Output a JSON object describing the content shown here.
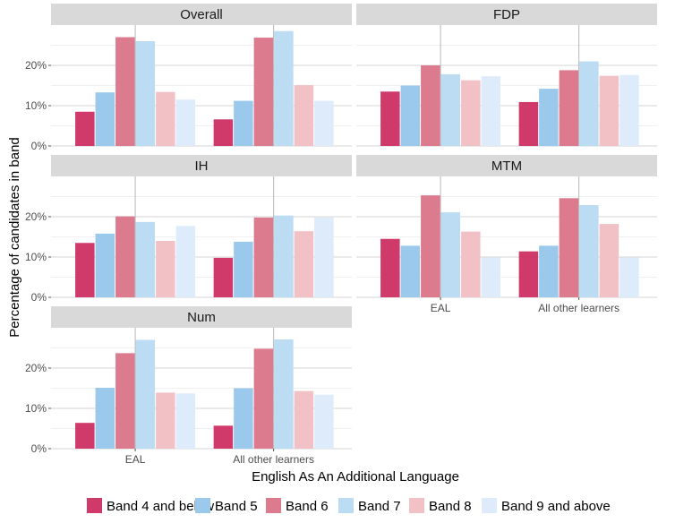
{
  "chart_data": {
    "type": "bar",
    "xlabel": "English As An Additional Language",
    "ylabel": "Percentage of candidates in band",
    "categories": [
      "EAL",
      "All other learners"
    ],
    "y_ticks": [
      "0%",
      "10%",
      "20%"
    ],
    "ylim": [
      0,
      30
    ],
    "grid": true,
    "legend_position": "bottom",
    "series_names": [
      "Band 4 and below",
      "Band 5",
      "Band 6",
      "Band 7",
      "Band 8",
      "Band 9 and above"
    ],
    "series_colors": [
      "#cf3a6a",
      "#9ac9ec",
      "#dc7a8e",
      "#bcdcf4",
      "#f1c1c6",
      "#ddebfa"
    ],
    "panels": [
      {
        "title": "Overall",
        "values": [
          [
            8.5,
            13.3,
            27.0,
            26.0,
            13.4,
            11.5
          ],
          [
            6.6,
            11.2,
            26.9,
            28.5,
            15.1,
            11.2
          ]
        ]
      },
      {
        "title": "FDP",
        "values": [
          [
            13.5,
            15.0,
            20.0,
            17.8,
            16.3,
            17.3
          ],
          [
            10.9,
            14.2,
            18.8,
            21.0,
            17.4,
            17.6
          ]
        ]
      },
      {
        "title": "IH",
        "values": [
          [
            13.5,
            15.8,
            20.1,
            18.7,
            14.0,
            17.7
          ],
          [
            9.8,
            13.8,
            19.8,
            20.3,
            16.4,
            19.8
          ]
        ]
      },
      {
        "title": "MTM",
        "values": [
          [
            14.5,
            12.8,
            25.3,
            21.1,
            16.3,
            9.9
          ],
          [
            11.4,
            12.8,
            24.6,
            22.9,
            18.2,
            9.9
          ]
        ]
      },
      {
        "title": "Num",
        "values": [
          [
            6.4,
            15.1,
            23.7,
            27.0,
            13.9,
            13.7
          ],
          [
            5.7,
            15.0,
            24.8,
            27.1,
            14.3,
            13.4
          ]
        ]
      }
    ]
  }
}
